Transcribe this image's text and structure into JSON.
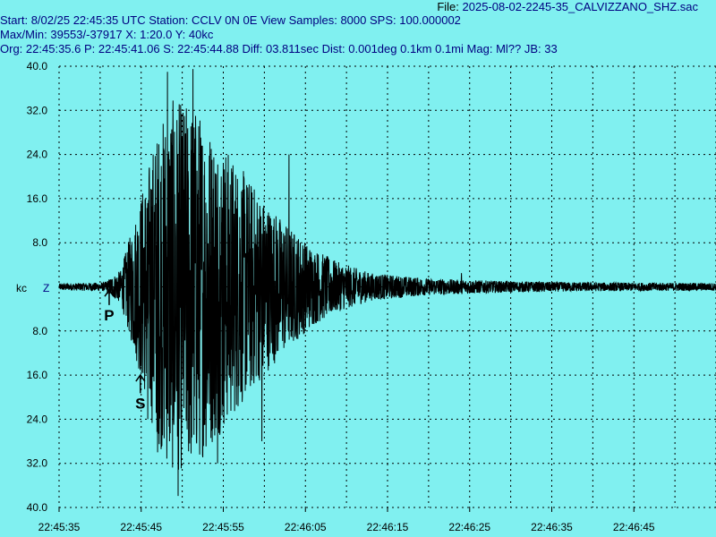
{
  "header": {
    "file_label": "File:",
    "file_name": "2025-08-02-2245-35_CALVIZZANO_SHZ.sac",
    "start_label": "Start:",
    "start_value": "8/02/25 22:45:35 UTC",
    "station_label": "Station:",
    "station_value": "CCLV 0N 0E",
    "view_label": "View Samples:",
    "view_value": "8000",
    "sps_label": "SPS:",
    "sps_value": "100.000002",
    "maxmin_label": "Max/Min:",
    "maxmin_value": "39553/-37917",
    "x_label": "X:",
    "x_value": "1:20.0",
    "y_label": "Y:",
    "y_value": "40kc",
    "org_label": "Org:",
    "org_value": "22:45:35.6",
    "p_label": "P:",
    "p_value": "22:45:41.06",
    "s_label": "S:",
    "s_value": "22:45:44.88",
    "diff_label": "Diff:",
    "diff_value": "03.811sec",
    "dist_label": "Dist:",
    "dist_value": "0.001deg 0.1km 0.1mi",
    "mag_label": "Mag:",
    "mag_value": "Ml??",
    "jb_label": "JB:",
    "jb_value": "33"
  },
  "chart_data": {
    "type": "line",
    "title": "",
    "unit_label": "kc",
    "channel_label": "Z",
    "ylabel": "",
    "xlabel": "",
    "ylim": [
      -40,
      40
    ],
    "y_ticks": [
      40,
      32,
      24,
      16,
      8,
      0,
      -8,
      -16,
      -24,
      -32,
      -40
    ],
    "y_tick_labels": [
      "40.0",
      "32.0",
      "24.0",
      "16.0",
      "8.0",
      "",
      "8.0",
      "16.0",
      "24.0",
      "32.0",
      "40.0"
    ],
    "x_range_seconds": [
      0,
      80
    ],
    "x_tick_seconds": [
      0,
      10,
      20,
      30,
      40,
      50,
      60,
      70
    ],
    "x_tick_labels": [
      "22:45:35",
      "22:45:45",
      "22:45:55",
      "22:46:05",
      "22:46:15",
      "22:46:25",
      "22:46:35",
      "22:46:45"
    ],
    "grid": true,
    "picks": [
      {
        "label": "P",
        "time_seconds": 6.1
      },
      {
        "label": "S",
        "time_seconds": 9.9
      }
    ],
    "series": [
      {
        "color": "#000000",
        "envelope": [
          {
            "t": 0,
            "amp": 0.6
          },
          {
            "t": 5.5,
            "amp": 0.8
          },
          {
            "t": 7.5,
            "amp": 3
          },
          {
            "t": 9.5,
            "amp": 14
          },
          {
            "t": 11.5,
            "amp": 26
          },
          {
            "t": 13.5,
            "amp": 34
          },
          {
            "t": 16.5,
            "amp": 33
          },
          {
            "t": 19,
            "amp": 28
          },
          {
            "t": 22,
            "amp": 22
          },
          {
            "t": 25,
            "amp": 16
          },
          {
            "t": 28,
            "amp": 11
          },
          {
            "t": 31,
            "amp": 7
          },
          {
            "t": 34,
            "amp": 4.5
          },
          {
            "t": 38,
            "amp": 2.5
          },
          {
            "t": 45,
            "amp": 1.5
          },
          {
            "t": 55,
            "amp": 1.0
          },
          {
            "t": 65,
            "amp": 0.8
          },
          {
            "t": 80,
            "amp": 0.7
          }
        ],
        "peaks": [
          {
            "t": 13.2,
            "value": 39
          },
          {
            "t": 16.3,
            "value": 39.5
          },
          {
            "t": 14.5,
            "value": -37.9
          },
          {
            "t": 12.0,
            "value": -30
          },
          {
            "t": 10.8,
            "value": -24
          },
          {
            "t": 19.3,
            "value": -32
          },
          {
            "t": 28.0,
            "value": 24
          },
          {
            "t": 24.7,
            "value": -28
          },
          {
            "t": 31.5,
            "value": -6
          },
          {
            "t": 49.0,
            "value": 2.5
          }
        ]
      }
    ]
  },
  "colors": {
    "background": "#80F0F0",
    "trace": "#000000",
    "grid": "#000000",
    "header_text": "#000080"
  }
}
